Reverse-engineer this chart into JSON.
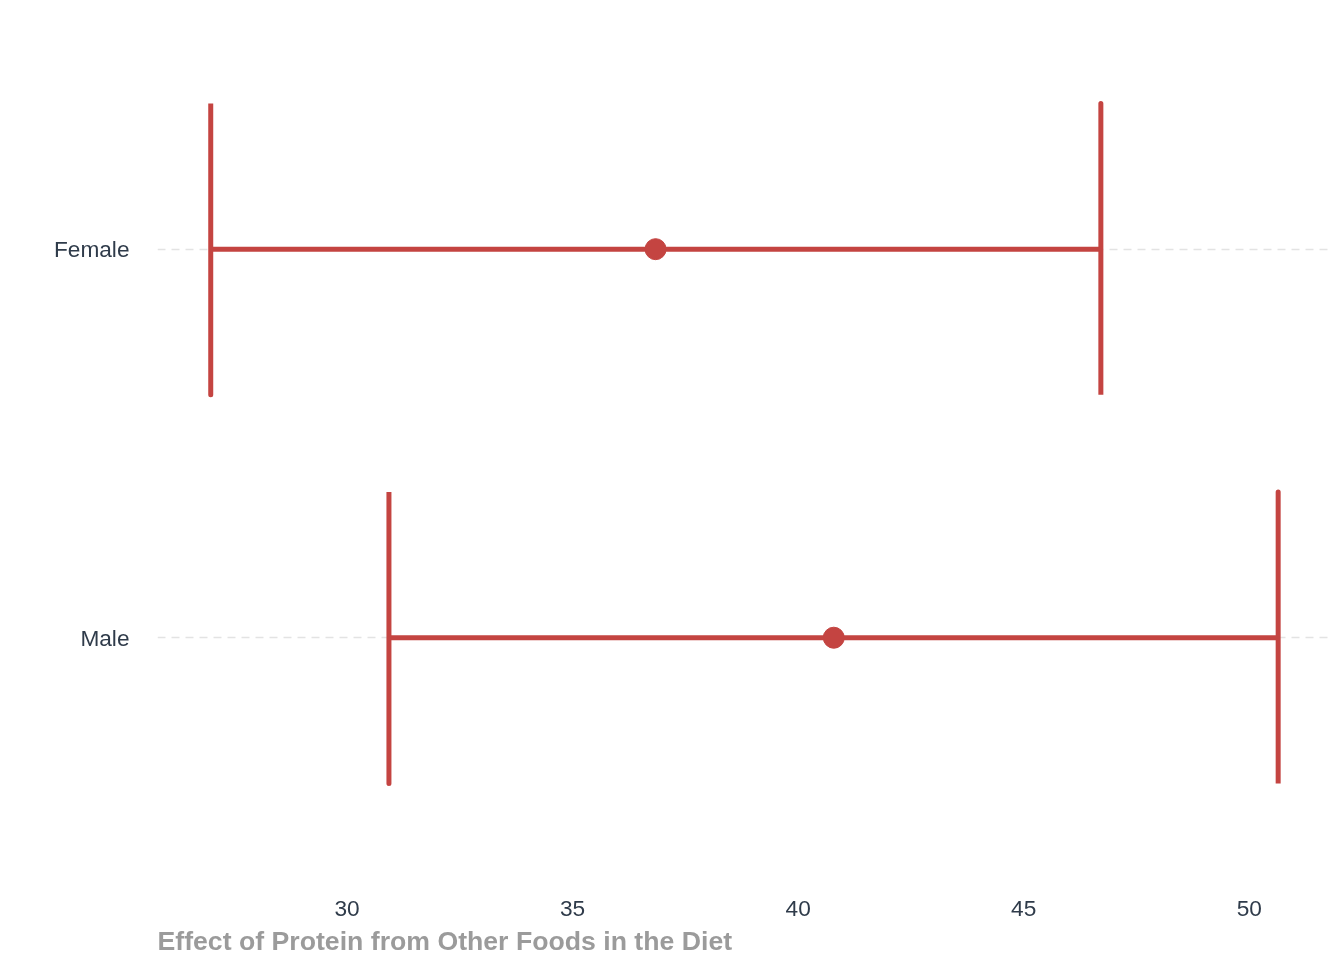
{
  "chart_data": {
    "type": "scatter",
    "orientation": "horizontal",
    "xlabel": "Effect of Protein from Other Foods in the Diet",
    "categories": [
      "Female",
      "Male"
    ],
    "values": [
      36.84,
      40.79
    ],
    "errors": [
      [
        26.98,
        46.71
      ],
      [
        30.93,
        50.64
      ]
    ],
    "color": "#c44441",
    "marker": "circle",
    "xlim": [
      25.8,
      51.8
    ],
    "xticks": [
      30,
      35,
      40,
      45,
      50
    ],
    "grid": "y"
  }
}
